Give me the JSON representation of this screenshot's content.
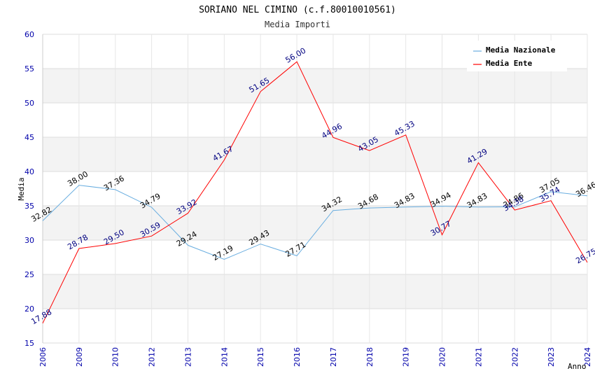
{
  "chart_data": {
    "type": "line",
    "title": "SORIANO NEL CIMINO (c.f.80010010561)",
    "subtitle": "Media Importi",
    "xlabel": "Anno",
    "ylabel": "Media",
    "ylim": [
      15,
      60
    ],
    "yticks": [
      "15",
      "20",
      "25",
      "30",
      "35",
      "40",
      "45",
      "50",
      "55",
      "60"
    ],
    "categories": [
      "2006",
      "2009",
      "2010",
      "2012",
      "2013",
      "2014",
      "2015",
      "2016",
      "2017",
      "2018",
      "2019",
      "2020",
      "2021",
      "2022",
      "2023",
      "2024"
    ],
    "series": [
      {
        "name": "Media Nazionale",
        "color": "#6aaee0",
        "values": [
          32.82,
          38.0,
          37.36,
          34.79,
          29.24,
          27.19,
          29.43,
          27.71,
          34.32,
          34.68,
          34.83,
          34.94,
          34.83,
          34.86,
          37.05,
          36.46
        ],
        "labels": [
          "32.82",
          "38.00",
          "37.36",
          "34.79",
          "29.24",
          "27.19",
          "29.43",
          "27.71",
          "34.32",
          "34.68",
          "34.83",
          "34.94",
          "34.83",
          "34.86",
          "37.05",
          "36.46"
        ]
      },
      {
        "name": "Media Ente",
        "color": "#ff0000",
        "values": [
          17.88,
          28.78,
          29.5,
          30.59,
          33.92,
          41.67,
          51.65,
          56.0,
          44.96,
          43.05,
          45.33,
          30.77,
          41.29,
          34.38,
          35.74,
          26.75
        ],
        "labels": [
          "17.88",
          "28.78",
          "29.50",
          "30.59",
          "33.92",
          "41.67",
          "51.65",
          "56.00",
          "44.96",
          "43.05",
          "45.33",
          "30.77",
          "41.29",
          "34.38",
          "35.74",
          "26.75"
        ]
      }
    ],
    "legend_position": "top-right",
    "grid": true
  }
}
